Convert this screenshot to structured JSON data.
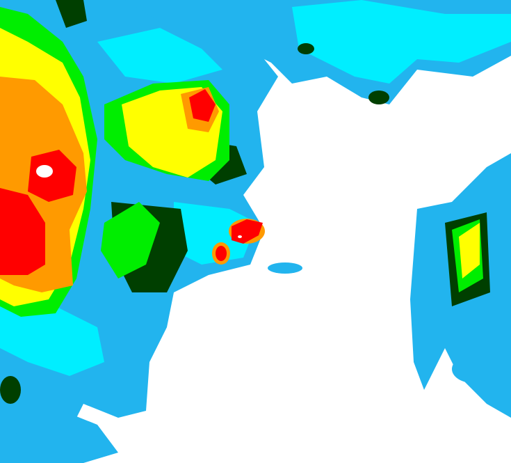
{
  "map": {
    "type": "precipitation-radar",
    "colors": {
      "background": "#ffffff",
      "light_blue": "#22b4ee",
      "cyan": "#00eeff",
      "dark_green": "#003f00",
      "green": "#00ee00",
      "yellow": "#ffff00",
      "orange": "#ff9a00",
      "red": "#ff0000",
      "core": "#ffffff"
    }
  }
}
